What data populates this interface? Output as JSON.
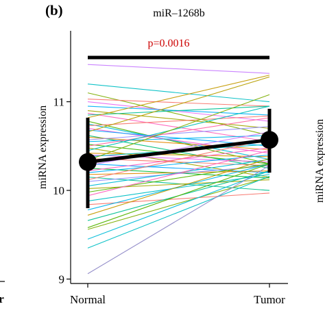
{
  "panel_label": "(b)",
  "edge_fragment": "r",
  "right_edge_ylabel": "miRNA expression",
  "chart_data": {
    "type": "line",
    "title": "miR–1268b",
    "xlabel": "",
    "ylabel": "miRNA expression",
    "categories": [
      "Normal",
      "Tumor"
    ],
    "ylim": [
      8.95,
      11.8
    ],
    "yticks": [
      9,
      10,
      11
    ],
    "grid": false,
    "legend": "none",
    "significance": {
      "label": "p=0.0016",
      "color": "#cc0000",
      "from": "Normal",
      "to": "Tumor"
    },
    "summary": {
      "normal": {
        "mean": 10.32,
        "lower": 9.8,
        "upper": 10.82
      },
      "tumor": {
        "mean": 10.57,
        "lower": 10.2,
        "upper": 10.92
      }
    },
    "pairs": [
      {
        "normal": 11.42,
        "tumor": 11.32,
        "color": "#c77cff"
      },
      {
        "normal": 11.2,
        "tumor": 11.0,
        "color": "#00bfc4"
      },
      {
        "normal": 11.1,
        "tumor": 10.62,
        "color": "#7cae00"
      },
      {
        "normal": 11.03,
        "tumor": 10.95,
        "color": "#f8766d"
      },
      {
        "normal": 11.0,
        "tumor": 10.78,
        "color": "#e76bf3"
      },
      {
        "normal": 10.95,
        "tumor": 10.85,
        "color": "#00b0f6"
      },
      {
        "normal": 10.9,
        "tumor": 10.7,
        "color": "#a3a500"
      },
      {
        "normal": 10.87,
        "tumor": 10.55,
        "color": "#ff62bc"
      },
      {
        "normal": 10.85,
        "tumor": 10.95,
        "color": "#00c094"
      },
      {
        "normal": 10.82,
        "tumor": 11.3,
        "color": "#c49a00"
      },
      {
        "normal": 10.78,
        "tumor": 10.3,
        "color": "#53b400"
      },
      {
        "normal": 10.75,
        "tumor": 10.35,
        "color": "#00bcd8"
      },
      {
        "normal": 10.73,
        "tumor": 10.84,
        "color": "#f8766d"
      },
      {
        "normal": 10.7,
        "tumor": 10.42,
        "color": "#fb61d7"
      },
      {
        "normal": 10.68,
        "tumor": 10.5,
        "color": "#00a9ff"
      },
      {
        "normal": 10.66,
        "tumor": 11.28,
        "color": "#b79f00"
      },
      {
        "normal": 10.62,
        "tumor": 10.25,
        "color": "#00bf7d"
      },
      {
        "normal": 10.6,
        "tumor": 10.46,
        "color": "#e58700"
      },
      {
        "normal": 10.57,
        "tumor": 10.72,
        "color": "#9590ff"
      },
      {
        "normal": 10.55,
        "tumor": 10.62,
        "color": "#00b6eb"
      },
      {
        "normal": 10.52,
        "tumor": 10.3,
        "color": "#39b600"
      },
      {
        "normal": 10.5,
        "tumor": 10.82,
        "color": "#ff67a4"
      },
      {
        "normal": 10.48,
        "tumor": 10.15,
        "color": "#a3a500"
      },
      {
        "normal": 10.45,
        "tumor": 10.95,
        "color": "#00c0b8"
      },
      {
        "normal": 10.42,
        "tumor": 10.38,
        "color": "#d89000"
      },
      {
        "normal": 10.4,
        "tumor": 10.32,
        "color": "#e76bf3"
      },
      {
        "normal": 10.38,
        "tumor": 10.52,
        "color": "#00bfc4"
      },
      {
        "normal": 10.36,
        "tumor": 10.28,
        "color": "#f8766d"
      },
      {
        "normal": 10.34,
        "tumor": 11.08,
        "color": "#7cae00"
      },
      {
        "normal": 10.3,
        "tumor": 10.2,
        "color": "#00a5ff"
      },
      {
        "normal": 10.28,
        "tumor": 10.66,
        "color": "#c77cff"
      },
      {
        "normal": 10.25,
        "tumor": 10.14,
        "color": "#00ba38"
      },
      {
        "normal": 10.22,
        "tumor": 10.48,
        "color": "#ff61c3"
      },
      {
        "normal": 10.2,
        "tumor": 10.4,
        "color": "#00b0f6"
      },
      {
        "normal": 10.18,
        "tumor": 10.22,
        "color": "#e58700"
      },
      {
        "normal": 10.15,
        "tumor": 10.0,
        "color": "#00c08b"
      },
      {
        "normal": 10.12,
        "tumor": 10.58,
        "color": "#f8766d"
      },
      {
        "normal": 10.1,
        "tumor": 10.28,
        "color": "#9590ff"
      },
      {
        "normal": 10.05,
        "tumor": 10.35,
        "color": "#00bcd8"
      },
      {
        "normal": 10.02,
        "tumor": 10.12,
        "color": "#a3a500"
      },
      {
        "normal": 9.98,
        "tumor": 10.3,
        "color": "#53b400"
      },
      {
        "normal": 9.94,
        "tumor": 10.45,
        "color": "#ff62bc"
      },
      {
        "normal": 9.88,
        "tumor": 10.18,
        "color": "#00bfc4"
      },
      {
        "normal": 9.84,
        "tumor": 9.97,
        "color": "#f8766d"
      },
      {
        "normal": 9.78,
        "tumor": 10.3,
        "color": "#00b6eb"
      },
      {
        "normal": 9.72,
        "tumor": 10.36,
        "color": "#c49a00"
      },
      {
        "normal": 9.66,
        "tumor": 10.22,
        "color": "#00c094"
      },
      {
        "normal": 9.58,
        "tumor": 10.3,
        "color": "#53b400"
      },
      {
        "normal": 9.56,
        "tumor": 10.15,
        "color": "#7cae00"
      },
      {
        "normal": 9.45,
        "tumor": 10.22,
        "color": "#00bcd8"
      },
      {
        "normal": 9.35,
        "tumor": 10.16,
        "color": "#00bfc4"
      },
      {
        "normal": 9.06,
        "tumor": 10.28,
        "color": "#8f89c7"
      }
    ]
  }
}
